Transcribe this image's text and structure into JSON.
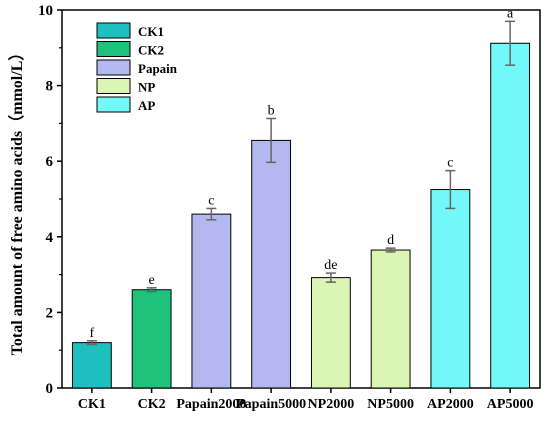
{
  "chart_data": {
    "type": "bar",
    "ylabel": "Total amount of free amino acids（mmol/L）",
    "xlabel": "",
    "ylim": [
      0,
      10
    ],
    "yticks": [
      0,
      2,
      4,
      6,
      8,
      10
    ],
    "categories": [
      "CK1",
      "CK2",
      "Papain2000",
      "Papain5000",
      "NP2000",
      "NP5000",
      "AP2000",
      "AP5000"
    ],
    "values": [
      1.2,
      2.6,
      4.6,
      6.55,
      2.92,
      3.65,
      5.25,
      9.12
    ],
    "errors": [
      0.05,
      0.05,
      0.15,
      0.58,
      0.12,
      0.05,
      0.5,
      0.58
    ],
    "significance": [
      "f",
      "e",
      "c",
      "b",
      "de",
      "d",
      "c",
      "a"
    ],
    "groups": [
      "CK1",
      "CK2",
      "Papain",
      "Papain",
      "NP",
      "NP",
      "AP",
      "AP"
    ],
    "legend": {
      "placement": "top-left",
      "entries": [
        {
          "label": "CK1",
          "color": "#1ebfbf"
        },
        {
          "label": "CK2",
          "color": "#1ec27a"
        },
        {
          "label": "Papain",
          "color": "#b3b9f0"
        },
        {
          "label": "NP",
          "color": "#dbf5b5"
        },
        {
          "label": "AP",
          "color": "#72f8f8"
        }
      ]
    },
    "grid": false
  }
}
